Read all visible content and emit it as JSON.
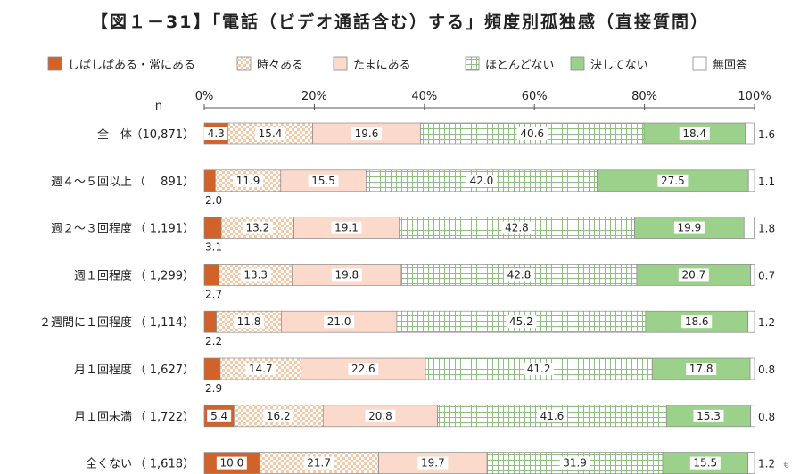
{
  "chart_data": {
    "type": "bar",
    "orientation": "horizontal",
    "stacked": true,
    "percent_scale": true,
    "title": "【図１－31】「電話（ビデオ通話含む）する」頻度別孤独感（直接質問）",
    "n_label": "n",
    "x_ticks": [
      "0%",
      "20%",
      "40%",
      "60%",
      "80%",
      "100%"
    ],
    "xlim": [
      0,
      100
    ],
    "legend_position": "top",
    "series": [
      {
        "name": "しばしばある・常にある",
        "color": "#d0622a",
        "pattern": "solid"
      },
      {
        "name": "時々ある",
        "color": "#f4c9a8",
        "pattern": "checker"
      },
      {
        "name": "たまにある",
        "color": "#fbdacb",
        "pattern": "solid"
      },
      {
        "name": "ほとんどない",
        "color": "#ffffff",
        "pattern": "grid"
      },
      {
        "name": "決してない",
        "color": "#9bd18a",
        "pattern": "solid"
      },
      {
        "name": "無回答",
        "color": "#ffffff",
        "pattern": "solid"
      }
    ],
    "categories": [
      {
        "label": "全　体",
        "n": "（10,871）",
        "values": [
          4.3,
          15.4,
          19.6,
          40.6,
          18.4,
          1.6
        ]
      },
      {
        "label": "週４～５回以上",
        "n": "（　 891）",
        "values": [
          2.0,
          11.9,
          15.5,
          42.0,
          27.5,
          1.1
        ]
      },
      {
        "label": "週２～３回程度",
        "n": "（ 1,191）",
        "values": [
          3.1,
          13.2,
          19.1,
          42.8,
          19.9,
          1.8
        ]
      },
      {
        "label": "週１回程度",
        "n": "（ 1,299）",
        "values": [
          2.7,
          13.3,
          19.8,
          42.8,
          20.7,
          0.7
        ]
      },
      {
        "label": "２週間に１回程度",
        "n": "（ 1,114）",
        "values": [
          2.2,
          11.8,
          21.0,
          45.2,
          18.6,
          1.2
        ]
      },
      {
        "label": "月１回程度",
        "n": "（ 1,627）",
        "values": [
          2.9,
          14.7,
          22.6,
          41.2,
          17.8,
          0.8
        ]
      },
      {
        "label": "月１回未満",
        "n": "（ 1,722）",
        "values": [
          5.4,
          16.2,
          20.8,
          41.6,
          15.3,
          0.8
        ]
      },
      {
        "label": "全くない",
        "n": "（ 1,618）",
        "values": [
          10.0,
          21.7,
          19.7,
          31.9,
          15.5,
          1.2
        ]
      }
    ]
  },
  "footer_mark": "€"
}
